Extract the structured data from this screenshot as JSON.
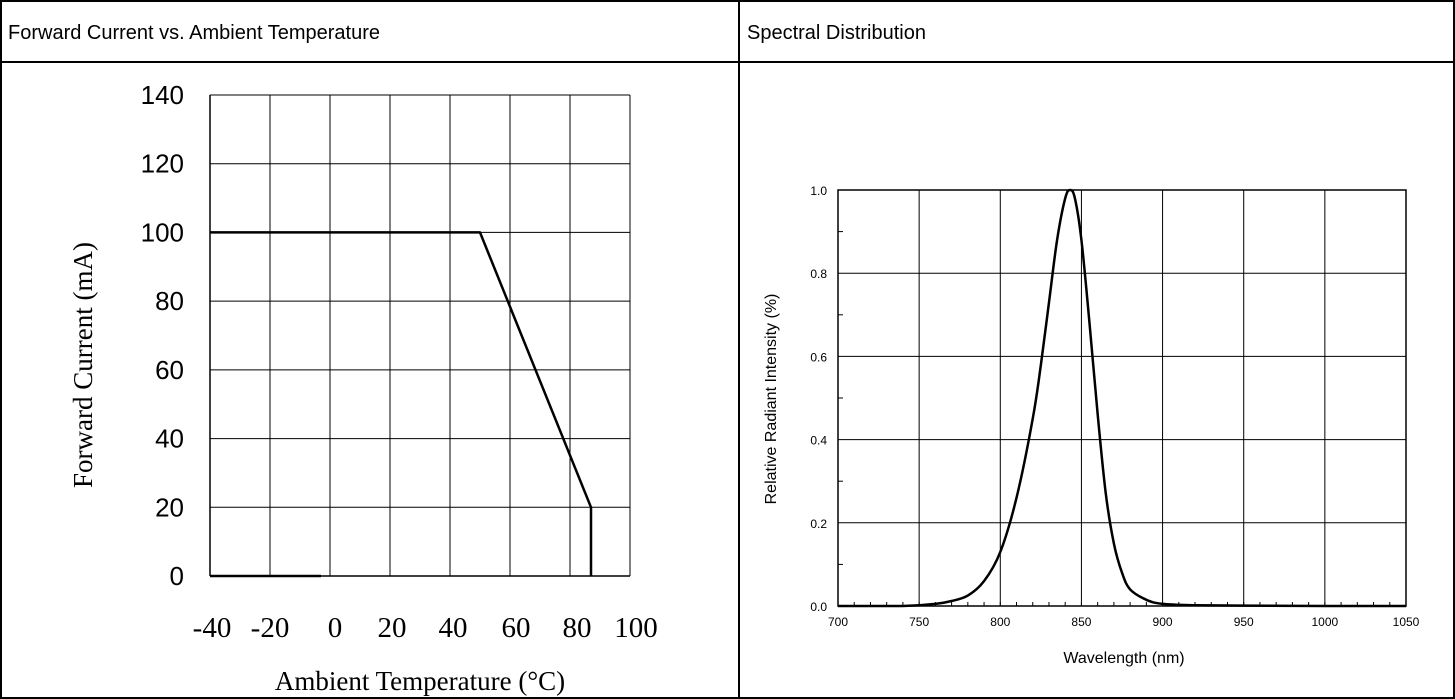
{
  "panels": {
    "left_header": "Forward Current vs. Ambient Temperature",
    "right_header": "Spectral Distribution"
  },
  "chart_data": [
    {
      "type": "line",
      "title": "Forward Current vs. Ambient Temperature",
      "xlabel": "Ambient Temperature (°C)",
      "ylabel": "Forward Current (mA)",
      "xlim": [
        -40,
        100
      ],
      "ylim": [
        0,
        140
      ],
      "x_ticks": [
        "-40",
        "-20",
        "0",
        "20",
        "40",
        "60",
        "80",
        "100"
      ],
      "y_ticks": [
        "0",
        "20",
        "40",
        "60",
        "80",
        "100",
        "120",
        "140"
      ],
      "grid": true,
      "series": [
        {
          "x": [
            -40,
            50,
            87,
            87
          ],
          "y": [
            100,
            100,
            20,
            0
          ]
        },
        {
          "x": [
            -40,
            -3
          ],
          "y": [
            0,
            0
          ]
        }
      ]
    },
    {
      "type": "line",
      "title": "Spectral Distribution",
      "xlabel": "Wavelength  (nm)",
      "ylabel": "Relative Radiant Intensity (%)",
      "xlim": [
        700,
        1050
      ],
      "ylim": [
        0,
        1.0
      ],
      "x_ticks": [
        "700",
        "750",
        "800",
        "850",
        "900",
        "950",
        "1000",
        "1050"
      ],
      "y_ticks": [
        "0.0",
        "0.2",
        "0.4",
        "0.6",
        "0.8",
        "1.0"
      ],
      "grid": true,
      "series": [
        {
          "x": [
            700,
            740,
            760,
            770,
            780,
            790,
            800,
            810,
            820,
            825,
            830,
            835,
            840,
            843,
            846,
            850,
            855,
            860,
            865,
            870,
            875,
            880,
            890,
            900,
            920,
            950,
            1000,
            1050
          ],
          "y": [
            0.0,
            0.0,
            0.005,
            0.012,
            0.025,
            0.06,
            0.13,
            0.26,
            0.45,
            0.58,
            0.73,
            0.88,
            0.98,
            1.0,
            0.98,
            0.88,
            0.68,
            0.46,
            0.27,
            0.15,
            0.08,
            0.04,
            0.015,
            0.005,
            0.002,
            0.001,
            0.0,
            0.0
          ]
        }
      ]
    }
  ]
}
